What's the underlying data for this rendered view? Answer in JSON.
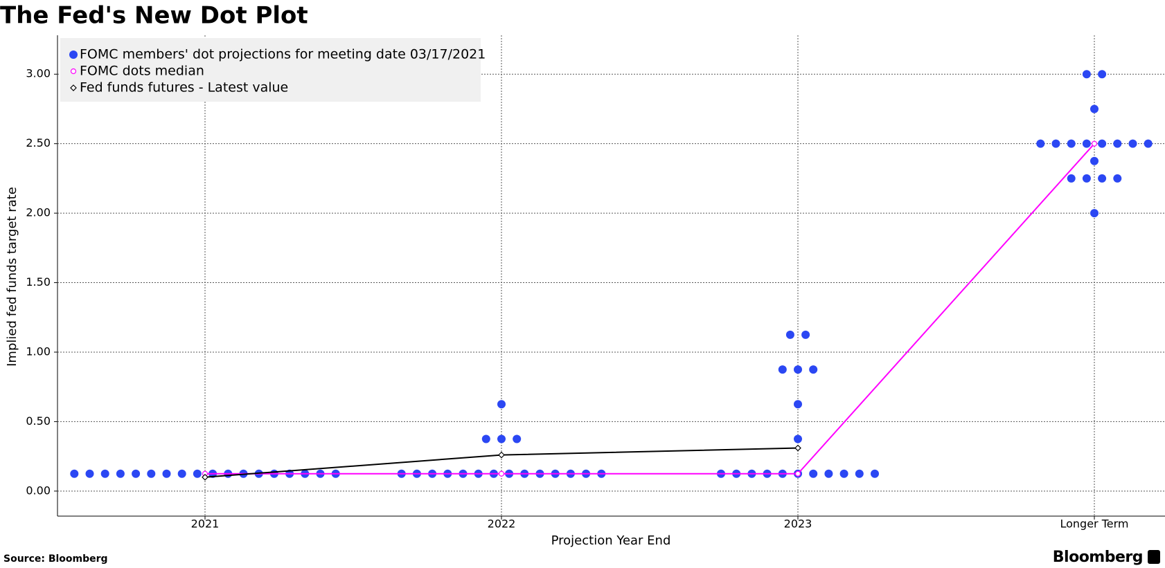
{
  "chart_data": {
    "type": "dot",
    "title": "The Fed's New Dot Plot",
    "x_label": "Projection Year End",
    "y_label": "Implied fed funds target rate",
    "source": "Source: Bloomberg",
    "brand": "Bloomberg",
    "categories": [
      "2021",
      "2022",
      "2023",
      "Longer Term"
    ],
    "series": [
      {
        "name": "FOMC members' dot projections for meeting date 03/17/2021",
        "color": "#2b47f3",
        "marker": "dot",
        "values": [
          [
            0.125,
            0.125,
            0.125,
            0.125,
            0.125,
            0.125,
            0.125,
            0.125,
            0.125,
            0.125,
            0.125,
            0.125,
            0.125,
            0.125,
            0.125,
            0.125,
            0.125,
            0.125
          ],
          [
            0.125,
            0.125,
            0.125,
            0.125,
            0.125,
            0.125,
            0.125,
            0.125,
            0.125,
            0.125,
            0.125,
            0.125,
            0.125,
            0.125,
            0.375,
            0.375,
            0.375,
            0.625
          ],
          [
            0.125,
            0.125,
            0.125,
            0.125,
            0.125,
            0.125,
            0.125,
            0.125,
            0.125,
            0.125,
            0.125,
            0.375,
            0.625,
            0.875,
            0.875,
            0.875,
            1.125,
            1.125
          ],
          [
            2.0,
            2.25,
            2.25,
            2.25,
            2.25,
            2.375,
            2.5,
            2.5,
            2.5,
            2.5,
            2.5,
            2.5,
            2.5,
            2.5,
            2.75,
            3.0,
            3.0
          ]
        ]
      },
      {
        "name": "FOMC dots median",
        "color": "#ff00ff",
        "marker": "open-circle",
        "values": [
          0.125,
          0.125,
          0.125,
          2.5
        ]
      },
      {
        "name": "Fed funds futures - Latest value",
        "color": "#000000",
        "marker": "diamond",
        "values": [
          0.1,
          0.26,
          0.31,
          null
        ]
      }
    ],
    "ylim": [
      -0.18,
      3.28
    ],
    "yticks": [
      {
        "value": 0,
        "label": "0.00"
      },
      {
        "value": 0.5,
        "label": "0.50"
      },
      {
        "value": 1,
        "label": "1.00"
      },
      {
        "value": 1.5,
        "label": "1.50"
      },
      {
        "value": 2,
        "label": "2.00"
      },
      {
        "value": 2.5,
        "label": "2.50"
      },
      {
        "value": 3,
        "label": "3.00"
      }
    ],
    "grid": true,
    "legend": "upper left"
  }
}
